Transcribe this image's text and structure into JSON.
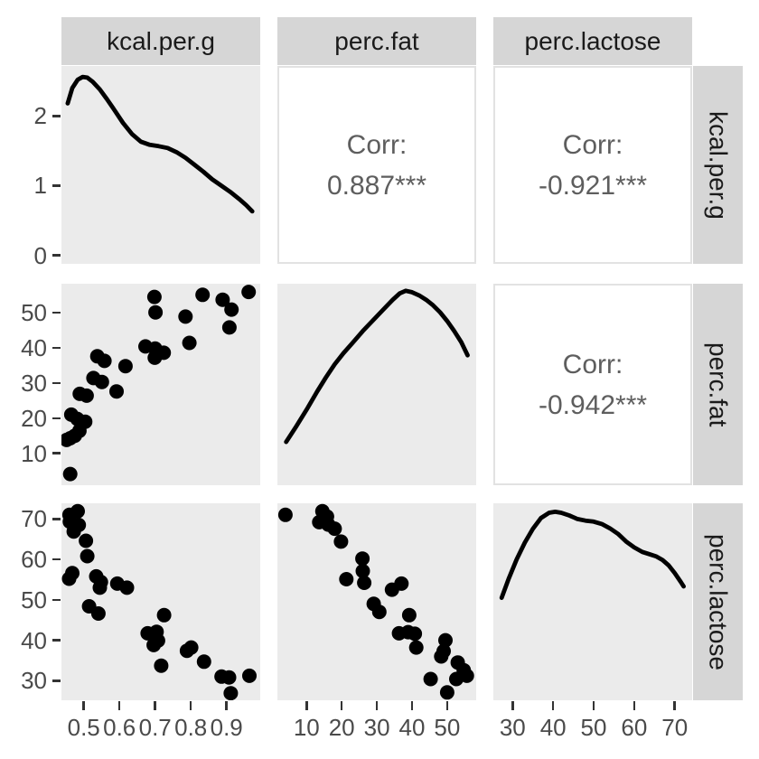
{
  "figure": {
    "kind": "ggpairs scatterplot matrix",
    "background": "#FFFFFF",
    "panel_background": "#EBEBEB",
    "strip_background": "#D6D6D6",
    "strip_text_color": "#1A1A1A",
    "axis_text_color": "#4A4A4A",
    "tick_mark_color": "#333333",
    "corr_text_color": "#5E5E5E",
    "corr_panel_border": "#E2E2E2",
    "point_color": "#000000",
    "density_line_color": "#000000"
  },
  "chart_data": {
    "type": "pairs_matrix",
    "variables": [
      "kcal.per.g",
      "perc.fat",
      "perc.lactose"
    ],
    "grid": "off",
    "n_points_per_scatter": 29,
    "correlations": [
      {
        "row": "kcal.per.g",
        "col": "perc.fat",
        "label": "Corr:",
        "value": "0.887***"
      },
      {
        "row": "kcal.per.g",
        "col": "perc.lactose",
        "label": "Corr:",
        "value": "-0.921***"
      },
      {
        "row": "perc.fat",
        "col": "perc.lactose",
        "label": "Corr:",
        "value": "-0.942***"
      }
    ],
    "x_axes": [
      {
        "var": "kcal.per.g",
        "range": [
          0.4375,
          0.9944
        ],
        "ticks": [
          0.5,
          0.6,
          0.7,
          0.8,
          0.9
        ],
        "tick_labels": [
          "0.5",
          "0.6",
          "0.7",
          "0.8",
          "0.9"
        ]
      },
      {
        "var": "perc.fat",
        "range": [
          1.7,
          58.25
        ],
        "ticks": [
          10,
          20,
          30,
          40,
          50
        ],
        "tick_labels": [
          "10",
          "20",
          "30",
          "40",
          "50"
        ]
      },
      {
        "var": "perc.lactose",
        "range": [
          25.25,
          74.3
        ],
        "ticks": [
          30,
          40,
          50,
          60,
          70
        ],
        "tick_labels": [
          "30",
          "40",
          "50",
          "60",
          "70"
        ]
      }
    ],
    "y_axes": [
      {
        "var": "density(kcal.per.g)",
        "range": [
          -0.123,
          2.717
        ],
        "ticks": [
          0,
          1,
          2
        ],
        "tick_labels": [
          "0",
          "1",
          "2"
        ]
      },
      {
        "var": "perc.fat",
        "range": [
          0.92,
          58.25
        ],
        "ticks": [
          10,
          20,
          30,
          40,
          50
        ],
        "tick_labels": [
          "10",
          "20",
          "30",
          "40",
          "50"
        ]
      },
      {
        "var": "perc.lactose",
        "range": [
          25.15,
          73.87
        ],
        "ticks": [
          30,
          40,
          50,
          60,
          70
        ],
        "tick_labels": [
          "30",
          "40",
          "50",
          "60",
          "70"
        ]
      }
    ],
    "panels": [
      {
        "r": 0,
        "c": 0,
        "type": "density",
        "x_var": "kcal.per.g",
        "y_mode": "value",
        "points": [
          [
            0.455,
            2.18
          ],
          [
            0.468,
            2.4
          ],
          [
            0.483,
            2.52
          ],
          [
            0.497,
            2.56
          ],
          [
            0.51,
            2.55
          ],
          [
            0.525,
            2.49
          ],
          [
            0.545,
            2.38
          ],
          [
            0.565,
            2.24
          ],
          [
            0.585,
            2.09
          ],
          [
            0.61,
            1.9
          ],
          [
            0.635,
            1.74
          ],
          [
            0.66,
            1.63
          ],
          [
            0.685,
            1.585
          ],
          [
            0.71,
            1.565
          ],
          [
            0.735,
            1.54
          ],
          [
            0.76,
            1.48
          ],
          [
            0.785,
            1.4
          ],
          [
            0.81,
            1.3
          ],
          [
            0.835,
            1.2
          ],
          [
            0.86,
            1.09
          ],
          [
            0.885,
            1.0
          ],
          [
            0.91,
            0.91
          ],
          [
            0.935,
            0.81
          ],
          [
            0.955,
            0.72
          ],
          [
            0.972,
            0.63
          ]
        ]
      },
      {
        "r": 0,
        "c": 1,
        "type": "corr",
        "corr_index": 0
      },
      {
        "r": 0,
        "c": 2,
        "type": "corr",
        "corr_index": 1
      },
      {
        "r": 1,
        "c": 0,
        "type": "scatter",
        "x_var": "kcal.per.g",
        "y_var": "perc.fat",
        "points": [
          [
            0.462,
            4.1
          ],
          [
            0.452,
            13.8
          ],
          [
            0.462,
            14.3
          ],
          [
            0.475,
            15.0
          ],
          [
            0.488,
            16.4
          ],
          [
            0.465,
            21.0
          ],
          [
            0.482,
            19.8
          ],
          [
            0.504,
            19.0
          ],
          [
            0.489,
            26.9
          ],
          [
            0.508,
            26.4
          ],
          [
            0.527,
            31.4
          ],
          [
            0.551,
            30.3
          ],
          [
            0.538,
            37.6
          ],
          [
            0.558,
            36.3
          ],
          [
            0.592,
            27.6
          ],
          [
            0.617,
            34.8
          ],
          [
            0.673,
            40.4
          ],
          [
            0.7,
            39.8
          ],
          [
            0.699,
            37.2
          ],
          [
            0.724,
            38.6
          ],
          [
            0.698,
            54.5
          ],
          [
            0.701,
            50.1
          ],
          [
            0.785,
            48.9
          ],
          [
            0.796,
            41.4
          ],
          [
            0.833,
            55.1
          ],
          [
            0.889,
            53.7
          ],
          [
            0.914,
            50.9
          ],
          [
            0.908,
            45.8
          ],
          [
            0.962,
            55.9
          ]
        ]
      },
      {
        "r": 1,
        "c": 1,
        "type": "density",
        "x_var": "perc.fat",
        "y_mode": "fraction",
        "points": [
          [
            4.2,
            0.215
          ],
          [
            7,
            0.29
          ],
          [
            10,
            0.375
          ],
          [
            13,
            0.465
          ],
          [
            15.5,
            0.535
          ],
          [
            18,
            0.6
          ],
          [
            20.5,
            0.655
          ],
          [
            23,
            0.705
          ],
          [
            26,
            0.765
          ],
          [
            29,
            0.82
          ],
          [
            32,
            0.875
          ],
          [
            34.5,
            0.92
          ],
          [
            36.5,
            0.952
          ],
          [
            38.2,
            0.965
          ],
          [
            40,
            0.958
          ],
          [
            42,
            0.942
          ],
          [
            44,
            0.92
          ],
          [
            46,
            0.893
          ],
          [
            48,
            0.858
          ],
          [
            50,
            0.815
          ],
          [
            52,
            0.765
          ],
          [
            54,
            0.71
          ],
          [
            55.8,
            0.645
          ]
        ]
      },
      {
        "r": 1,
        "c": 2,
        "type": "corr",
        "corr_index": 2
      },
      {
        "r": 2,
        "c": 0,
        "type": "scatter",
        "x_var": "kcal.per.g",
        "y_var": "perc.lactose",
        "points": [
          [
            0.483,
            71.9
          ],
          [
            0.46,
            71.0
          ],
          [
            0.461,
            69.3
          ],
          [
            0.486,
            68.5
          ],
          [
            0.472,
            66.9
          ],
          [
            0.506,
            64.6
          ],
          [
            0.51,
            60.8
          ],
          [
            0.468,
            56.6
          ],
          [
            0.459,
            55.2
          ],
          [
            0.535,
            55.8
          ],
          [
            0.548,
            54.4
          ],
          [
            0.545,
            53.0
          ],
          [
            0.594,
            54.0
          ],
          [
            0.621,
            53.0
          ],
          [
            0.515,
            48.4
          ],
          [
            0.541,
            46.6
          ],
          [
            0.725,
            46.2
          ],
          [
            0.679,
            41.7
          ],
          [
            0.704,
            42.1
          ],
          [
            0.708,
            39.9
          ],
          [
            0.696,
            38.8
          ],
          [
            0.717,
            33.7
          ],
          [
            0.789,
            37.4
          ],
          [
            0.801,
            38.2
          ],
          [
            0.837,
            34.7
          ],
          [
            0.886,
            31.0
          ],
          [
            0.907,
            30.8
          ],
          [
            0.912,
            26.9
          ],
          [
            0.964,
            31.2
          ]
        ]
      },
      {
        "r": 2,
        "c": 1,
        "type": "scatter",
        "x_var": "perc.fat",
        "y_var": "perc.lactose",
        "points": [
          [
            4.0,
            71.0
          ],
          [
            14.5,
            71.9
          ],
          [
            15.8,
            70.6
          ],
          [
            13.6,
            69.2
          ],
          [
            16.2,
            68.6
          ],
          [
            18.0,
            67.6
          ],
          [
            19.8,
            64.4
          ],
          [
            25.9,
            60.2
          ],
          [
            26.0,
            57.1
          ],
          [
            26.4,
            54.2
          ],
          [
            21.3,
            55.1
          ],
          [
            29.1,
            49.0
          ],
          [
            30.7,
            47.0
          ],
          [
            34.3,
            52.5
          ],
          [
            37.0,
            54.0
          ],
          [
            39.2,
            46.2
          ],
          [
            36.3,
            41.7
          ],
          [
            38.9,
            42.0
          ],
          [
            40.8,
            41.6
          ],
          [
            41.2,
            38.2
          ],
          [
            49.5,
            40.0
          ],
          [
            49.0,
            37.3
          ],
          [
            48.3,
            36.0
          ],
          [
            53.0,
            34.5
          ],
          [
            54.7,
            32.6
          ],
          [
            52.6,
            30.4
          ],
          [
            55.6,
            31.2
          ],
          [
            45.3,
            30.4
          ],
          [
            50.0,
            27.1
          ]
        ]
      },
      {
        "r": 2,
        "c": 2,
        "type": "density",
        "x_var": "perc.lactose",
        "y_mode": "fraction",
        "points": [
          [
            27.3,
            0.52
          ],
          [
            29,
            0.615
          ],
          [
            31,
            0.715
          ],
          [
            33,
            0.8
          ],
          [
            35,
            0.87
          ],
          [
            37,
            0.925
          ],
          [
            39,
            0.952
          ],
          [
            40.5,
            0.957
          ],
          [
            42,
            0.952
          ],
          [
            44,
            0.938
          ],
          [
            46,
            0.92
          ],
          [
            48,
            0.912
          ],
          [
            50,
            0.907
          ],
          [
            52,
            0.895
          ],
          [
            54,
            0.873
          ],
          [
            56,
            0.845
          ],
          [
            58,
            0.806
          ],
          [
            60,
            0.776
          ],
          [
            62,
            0.753
          ],
          [
            64,
            0.74
          ],
          [
            65.5,
            0.73
          ],
          [
            67,
            0.712
          ],
          [
            68.5,
            0.685
          ],
          [
            70,
            0.646
          ],
          [
            71.5,
            0.601
          ],
          [
            72.2,
            0.578
          ]
        ]
      }
    ]
  }
}
